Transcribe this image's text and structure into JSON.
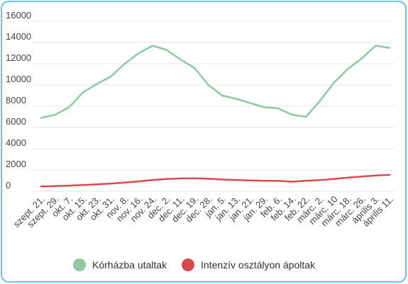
{
  "chart_data": {
    "type": "line",
    "categories": [
      "szept. 21.",
      "szept. 29.",
      "okt. 7.",
      "okt. 15.",
      "okt. 23.",
      "okt. 31.",
      "nov. 8.",
      "nov. 16.",
      "nov. 24.",
      "dec. 2.",
      "dec. 11.",
      "dec. 19.",
      "dec. 28.",
      "jan. 5.",
      "jan. 13.",
      "jan. 21.",
      "jan. 29.",
      "feb. 6.",
      "feb. 14.",
      "feb. 22.",
      "márc. 2.",
      "márc. 10",
      "márc. 18.",
      "márc. 26.",
      "április 3.",
      "április 11."
    ],
    "series": [
      {
        "name": "Kórházba utaltak",
        "color": "#8fcaa2",
        "values": [
          6900,
          7200,
          7900,
          9300,
          10100,
          10800,
          12000,
          13000,
          13700,
          13300,
          12400,
          11600,
          10000,
          9000,
          8700,
          8300,
          7900,
          7800,
          7200,
          7000,
          8500,
          10200,
          11500,
          12500,
          13700,
          13500
        ]
      },
      {
        "name": "Intenzív osztályon ápoltak",
        "color": "#d94a4f",
        "values": [
          450,
          480,
          530,
          580,
          650,
          720,
          820,
          930,
          1060,
          1150,
          1200,
          1210,
          1170,
          1100,
          1060,
          1020,
          990,
          970,
          900,
          980,
          1050,
          1150,
          1280,
          1380,
          1470,
          1540
        ]
      }
    ],
    "ylim": [
      0,
      16000
    ],
    "yticks": [
      0,
      2000,
      4000,
      6000,
      8000,
      10000,
      12000,
      14000,
      16000
    ],
    "grid": true,
    "legend": "bottom"
  },
  "frame": {
    "border_color": "#6fc2e0"
  }
}
